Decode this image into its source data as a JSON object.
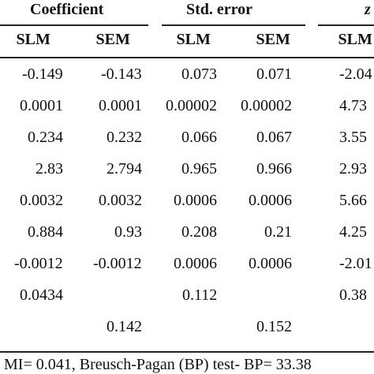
{
  "table": {
    "groups": [
      "Coefficient",
      "Std. error",
      "z"
    ],
    "columns": [
      "SLM",
      "SEM",
      "SLM",
      "SEM",
      "SLM"
    ],
    "rows": [
      [
        "-0.149",
        "-0.143",
        "0.073",
        "0.071",
        "-2.04"
      ],
      [
        "0.0001",
        "0.0001",
        "0.00002",
        "0.00002",
        "4.73"
      ],
      [
        "0.234",
        "0.232",
        "0.066",
        "0.067",
        "3.55"
      ],
      [
        "2.83",
        "2.794",
        "0.965",
        "0.966",
        "2.93"
      ],
      [
        "0.0032",
        "0.0032",
        "0.0006",
        "0.0006",
        "5.66"
      ],
      [
        "0.884",
        "0.93",
        "0.208",
        "0.21",
        "4.25"
      ],
      [
        "-0.0012",
        "-0.0012",
        "0.0006",
        "0.0006",
        "-2.01"
      ],
      [
        "0.0434",
        null,
        "0.112",
        null,
        "0.38"
      ],
      [
        null,
        "0.142",
        null,
        "0.152",
        null
      ]
    ]
  },
  "footer": "MI= 0.041, Breusch-Pagan (BP) test- BP= 33.38"
}
